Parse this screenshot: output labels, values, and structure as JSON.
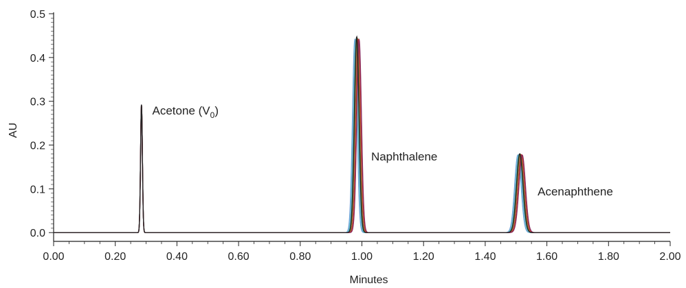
{
  "chart_data": {
    "type": "line",
    "title": "",
    "xlabel": "Minutes",
    "ylabel": "AU",
    "xlim": [
      0.0,
      2.0
    ],
    "ylim": [
      -0.02,
      0.5
    ],
    "grid": false,
    "x_ticks": [
      0.0,
      0.2,
      0.4,
      0.6,
      0.8,
      1.0,
      1.2,
      1.4,
      1.6,
      1.8,
      2.0
    ],
    "x_tick_labels": [
      "0.00",
      "0.20",
      "0.40",
      "0.60",
      "0.80",
      "1.00",
      "1.20",
      "1.40",
      "1.60",
      "1.80",
      "2.00"
    ],
    "y_ticks": [
      0.0,
      0.1,
      0.2,
      0.3,
      0.4,
      0.5
    ],
    "y_tick_labels": [
      "0.0",
      "0.1",
      "0.2",
      "0.3",
      "0.4",
      "0.5"
    ],
    "void_peak": {
      "x": 0.285,
      "height": 0.293,
      "width": 0.003
    },
    "peaks": [
      {
        "name": "Naphthalene",
        "x": 0.983,
        "height": 0.447,
        "width": 0.0075
      },
      {
        "name": "Acenaphthene",
        "x": 1.512,
        "height": 0.18,
        "width": 0.0105
      }
    ],
    "series": [
      {
        "color": "#6f9fd8",
        "shift": -0.006,
        "scale": 0.985
      },
      {
        "color": "#5fc4c9",
        "shift": -0.003,
        "scale": 0.99
      },
      {
        "color": "#9a7cc2",
        "shift": 0.0,
        "scale": 1.0
      },
      {
        "color": "#7b8d3a",
        "shift": 0.002,
        "scale": 0.995
      },
      {
        "color": "#c0392b",
        "shift": 0.005,
        "scale": 0.99
      },
      {
        "color": "#8a2b5c",
        "shift": 0.008,
        "scale": 0.985
      },
      {
        "color": "#222222",
        "shift": 0.0,
        "scale": 1.0
      }
    ],
    "annotations": [
      {
        "text": "Acetone (V",
        "sub": "0",
        "suffix": ")",
        "x": 0.32,
        "y": 0.27
      },
      {
        "text": "Naphthalene",
        "x": 1.03,
        "y": 0.165
      },
      {
        "text": "Acenaphthene",
        "x": 1.57,
        "y": 0.085
      }
    ]
  }
}
